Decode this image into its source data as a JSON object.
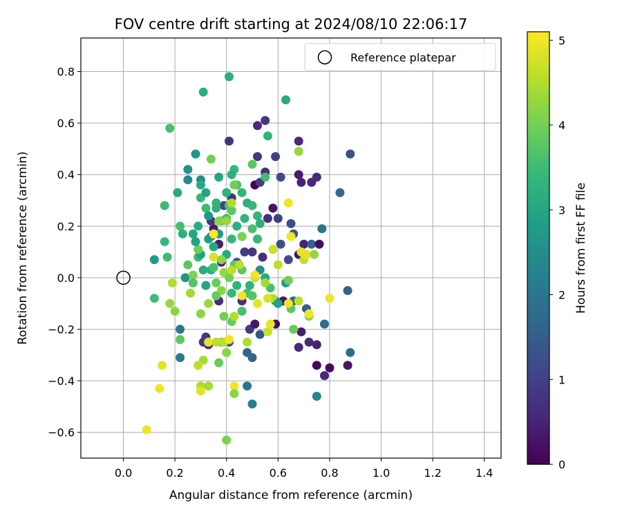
{
  "chart_data": {
    "type": "scatter",
    "title": "FOV centre drift starting at 2024/08/10 22:06:17",
    "xlabel": "Angular distance from reference (arcmin)",
    "ylabel": "Rotation from reference (arcmin)",
    "xlim": [
      -0.165,
      1.465
    ],
    "ylim": [
      -0.7,
      0.93
    ],
    "x_ticks": [
      0.0,
      0.2,
      0.4,
      0.6,
      0.8,
      1.0,
      1.2,
      1.4
    ],
    "x_tick_labels": [
      "0.0",
      "0.2",
      "0.4",
      "0.6",
      "0.8",
      "1.0",
      "1.2",
      "1.4"
    ],
    "y_ticks": [
      -0.6,
      -0.4,
      -0.2,
      0.0,
      0.2,
      0.4,
      0.6,
      0.8
    ],
    "y_tick_labels": [
      "−0.6",
      "−0.4",
      "−0.2",
      "0.0",
      "0.2",
      "0.4",
      "0.6",
      "0.8"
    ],
    "grid": true,
    "legend": {
      "position": "top-right",
      "entries": [
        {
          "label": "Reference platepar",
          "marker": "open-circle",
          "color": "#000000"
        }
      ]
    },
    "reference_point": {
      "x": 0.0,
      "y": 0.0,
      "label": "Reference platepar"
    },
    "colorbar": {
      "label": "Hours from first FF file",
      "min": 0,
      "max": 5.1,
      "ticks": [
        0,
        1,
        2,
        3,
        4,
        5
      ],
      "tick_labels": [
        "0",
        "1",
        "2",
        "3",
        "4",
        "5"
      ],
      "colormap": "viridis",
      "colormap_stops": [
        "#440154",
        "#482878",
        "#3e4989",
        "#31688e",
        "#26828e",
        "#1f9e89",
        "#35b779",
        "#6ece58",
        "#b5de2b",
        "#fde725"
      ]
    },
    "series": [
      {
        "points": [
          [
            0.51,
            0.36,
            0.05
          ],
          [
            0.52,
            0.59,
            0.6
          ],
          [
            0.55,
            0.61,
            0.85
          ],
          [
            0.41,
            0.53,
            0.75
          ],
          [
            0.59,
            0.47,
            1.0
          ],
          [
            0.52,
            0.47,
            0.8
          ],
          [
            0.53,
            0.37,
            0.9
          ],
          [
            0.55,
            0.41,
            0.7
          ],
          [
            0.61,
            0.39,
            1.2
          ],
          [
            0.68,
            0.53,
            0.6
          ],
          [
            0.68,
            0.4,
            0.4
          ],
          [
            0.73,
            0.37,
            0.55
          ],
          [
            0.75,
            0.39,
            0.6
          ],
          [
            0.69,
            0.37,
            0.5
          ],
          [
            0.84,
            0.33,
            1.7
          ],
          [
            0.88,
            0.48,
            1.3
          ],
          [
            0.58,
            0.27,
            0.3
          ],
          [
            0.56,
            0.23,
            0.7
          ],
          [
            0.6,
            0.23,
            1.0
          ],
          [
            0.65,
            0.21,
            1.2
          ],
          [
            0.66,
            0.17,
            1.4
          ],
          [
            0.7,
            0.13,
            0.5
          ],
          [
            0.73,
            0.13,
            1.6
          ],
          [
            0.77,
            0.19,
            2.0
          ],
          [
            0.76,
            0.13,
            0.2
          ],
          [
            0.68,
            0.09,
            0.3
          ],
          [
            0.64,
            0.07,
            1.2
          ],
          [
            0.61,
            0.13,
            1.3
          ],
          [
            0.54,
            0.08,
            0.7
          ],
          [
            0.5,
            0.1,
            0.8
          ],
          [
            0.47,
            0.1,
            0.9
          ],
          [
            0.44,
            0.06,
            1.4
          ],
          [
            0.38,
            0.06,
            0.6
          ],
          [
            0.42,
            0.31,
            0.8
          ],
          [
            0.39,
            0.28,
            1.1
          ],
          [
            0.35,
            0.19,
            0.4
          ],
          [
            0.34,
            0.22,
            0.8
          ],
          [
            0.37,
            0.13,
            0.4
          ],
          [
            0.37,
            -0.09,
            0.6
          ],
          [
            0.46,
            -0.09,
            0.7
          ],
          [
            0.49,
            -0.2,
            0.85
          ],
          [
            0.51,
            -0.18,
            0.3
          ],
          [
            0.53,
            -0.22,
            1.4
          ],
          [
            0.59,
            -0.18,
            0.1
          ],
          [
            0.62,
            -0.09,
            0.3
          ],
          [
            0.68,
            -0.27,
            0.6
          ],
          [
            0.69,
            -0.21,
            0.4
          ],
          [
            0.72,
            -0.25,
            0.6
          ],
          [
            0.75,
            -0.26,
            0.5
          ],
          [
            0.75,
            -0.34,
            0.1
          ],
          [
            0.78,
            -0.38,
            0.6
          ],
          [
            0.8,
            -0.35,
            0.15
          ],
          [
            0.87,
            -0.34,
            0.3
          ],
          [
            0.88,
            -0.29,
            1.8
          ],
          [
            0.87,
            -0.05,
            1.6
          ],
          [
            0.78,
            -0.18,
            1.8
          ],
          [
            0.71,
            -0.12,
            1.5
          ],
          [
            0.66,
            -0.09,
            1.7
          ],
          [
            0.59,
            -0.09,
            1.9
          ],
          [
            0.5,
            -0.31,
            1.6
          ],
          [
            0.48,
            -0.29,
            1.7
          ],
          [
            0.41,
            -0.25,
            1.3
          ],
          [
            0.32,
            -0.23,
            0.8
          ],
          [
            0.33,
            -0.26,
            0.6
          ],
          [
            0.31,
            -0.25,
            0.8
          ],
          [
            0.22,
            -0.2,
            2.0
          ],
          [
            0.22,
            -0.31,
            2.1
          ],
          [
            0.48,
            -0.42,
            2.0
          ],
          [
            0.5,
            -0.49,
            2.2
          ],
          [
            0.75,
            -0.46,
            2.3
          ],
          [
            0.63,
            0.69,
            3.1
          ],
          [
            0.31,
            0.72,
            3.2
          ],
          [
            0.41,
            0.78,
            3.2
          ],
          [
            0.18,
            0.58,
            3.6
          ],
          [
            0.28,
            0.48,
            2.7
          ],
          [
            0.25,
            0.42,
            2.6
          ],
          [
            0.25,
            0.38,
            2.4
          ],
          [
            0.3,
            0.38,
            2.5
          ],
          [
            0.3,
            0.36,
            3.1
          ],
          [
            0.37,
            0.39,
            3.0
          ],
          [
            0.43,
            0.42,
            3.4
          ],
          [
            0.42,
            0.4,
            3.2
          ],
          [
            0.4,
            0.33,
            3.3
          ],
          [
            0.41,
            0.28,
            3.7
          ],
          [
            0.44,
            0.36,
            3.6
          ],
          [
            0.46,
            0.33,
            3.3
          ],
          [
            0.48,
            0.29,
            3.2
          ],
          [
            0.5,
            0.28,
            3.4
          ],
          [
            0.52,
            0.24,
            3.3
          ],
          [
            0.55,
            0.39,
            3.5
          ],
          [
            0.56,
            0.55,
            3.3
          ],
          [
            0.5,
            0.44,
            3.8
          ],
          [
            0.16,
            0.28,
            3.5
          ],
          [
            0.21,
            0.33,
            3.1
          ],
          [
            0.22,
            0.2,
            3.6
          ],
          [
            0.23,
            0.17,
            3.2
          ],
          [
            0.27,
            0.17,
            3.0
          ],
          [
            0.29,
            0.2,
            3.1
          ],
          [
            0.3,
            0.31,
            3.4
          ],
          [
            0.32,
            0.27,
            3.5
          ],
          [
            0.36,
            0.27,
            3.2
          ],
          [
            0.36,
            0.29,
            3.3
          ],
          [
            0.38,
            0.22,
            3.7
          ],
          [
            0.4,
            0.23,
            3.5
          ],
          [
            0.42,
            0.26,
            3.8
          ],
          [
            0.44,
            0.2,
            3.2
          ],
          [
            0.46,
            0.16,
            3.5
          ],
          [
            0.47,
            0.23,
            3.3
          ],
          [
            0.5,
            0.19,
            3.6
          ],
          [
            0.52,
            0.15,
            3.4
          ],
          [
            0.53,
            0.21,
            3.2
          ],
          [
            0.16,
            0.14,
            3.4
          ],
          [
            0.17,
            0.08,
            3.5
          ],
          [
            0.12,
            0.07,
            2.8
          ],
          [
            0.12,
            -0.08,
            3.5
          ],
          [
            0.24,
            0.0,
            2.6
          ],
          [
            0.25,
            0.05,
            3.8
          ],
          [
            0.27,
            0.01,
            4.1
          ],
          [
            0.29,
            0.08,
            3.5
          ],
          [
            0.31,
            0.03,
            3.1
          ],
          [
            0.32,
            -0.03,
            3.0
          ],
          [
            0.34,
            0.03,
            3.2
          ],
          [
            0.35,
            0.04,
            3.6
          ],
          [
            0.36,
            -0.02,
            3.9
          ],
          [
            0.38,
            -0.05,
            4.2
          ],
          [
            0.39,
            0.02,
            4.3
          ],
          [
            0.41,
            0.0,
            4.0
          ],
          [
            0.42,
            -0.06,
            3.4
          ],
          [
            0.43,
            0.05,
            3.8
          ],
          [
            0.44,
            -0.03,
            3.3
          ],
          [
            0.46,
            0.03,
            3.8
          ],
          [
            0.48,
            -0.06,
            3.6
          ],
          [
            0.49,
            -0.03,
            3.3
          ],
          [
            0.5,
            -0.07,
            3.7
          ],
          [
            0.53,
            0.03,
            2.6
          ],
          [
            0.55,
            0.0,
            3.1
          ],
          [
            0.57,
            -0.04,
            3.6
          ],
          [
            0.58,
            -0.08,
            4.5
          ],
          [
            0.6,
            -0.1,
            2.9
          ],
          [
            0.63,
            -0.02,
            2.8
          ],
          [
            0.64,
            -0.01,
            4.0
          ],
          [
            0.65,
            -0.12,
            3.8
          ],
          [
            0.66,
            -0.2,
            3.9
          ],
          [
            0.72,
            -0.15,
            4.2
          ],
          [
            0.6,
            0.05,
            4.6
          ],
          [
            0.33,
            0.15,
            2.9
          ],
          [
            0.35,
            0.12,
            3.0
          ],
          [
            0.37,
            0.17,
            2.8
          ],
          [
            0.4,
            0.09,
            3.1
          ],
          [
            0.42,
            0.15,
            3.4
          ],
          [
            0.3,
            0.09,
            2.9
          ],
          [
            0.29,
            0.11,
            4.0
          ],
          [
            0.28,
            0.14,
            3.0
          ],
          [
            0.32,
            0.33,
            3.0
          ],
          [
            0.33,
            0.24,
            2.7
          ],
          [
            0.34,
            0.16,
            2.6
          ],
          [
            0.2,
            -0.13,
            4.2
          ],
          [
            0.18,
            -0.1,
            4.3
          ],
          [
            0.19,
            -0.02,
            4.5
          ],
          [
            0.22,
            -0.24,
            3.8
          ],
          [
            0.26,
            -0.06,
            4.4
          ],
          [
            0.27,
            -0.02,
            3.7
          ],
          [
            0.3,
            -0.14,
            4.2
          ],
          [
            0.33,
            -0.1,
            4.3
          ],
          [
            0.36,
            -0.07,
            3.9
          ],
          [
            0.39,
            -0.15,
            4.0
          ],
          [
            0.42,
            -0.17,
            3.9
          ],
          [
            0.43,
            -0.15,
            4.5
          ],
          [
            0.46,
            -0.13,
            3.6
          ],
          [
            0.4,
            -0.29,
            4.2
          ],
          [
            0.38,
            -0.25,
            4.0
          ],
          [
            0.37,
            -0.33,
            3.9
          ],
          [
            0.39,
            -0.25,
            4.6
          ],
          [
            0.31,
            -0.32,
            4.4
          ],
          [
            0.29,
            -0.34,
            4.6
          ],
          [
            0.3,
            -0.42,
            4.5
          ],
          [
            0.33,
            -0.42,
            4.4
          ],
          [
            0.36,
            -0.25,
            4.6
          ],
          [
            0.48,
            -0.25,
            4.5
          ],
          [
            0.4,
            -0.63,
            4.1
          ],
          [
            0.34,
            0.46,
            4.0
          ],
          [
            0.37,
            0.22,
            4.2
          ],
          [
            0.43,
            0.36,
            4.0
          ],
          [
            0.46,
            0.16,
            4.1
          ],
          [
            0.42,
            0.29,
            4.5
          ],
          [
            0.4,
            0.22,
            4.3
          ],
          [
            0.45,
            0.05,
            4.6
          ],
          [
            0.51,
            0.0,
            4.6
          ],
          [
            0.55,
            -0.02,
            4.4
          ],
          [
            0.58,
            0.11,
            4.7
          ],
          [
            0.65,
            0.16,
            5.0
          ],
          [
            0.64,
            0.29,
            5.0
          ],
          [
            0.68,
            0.49,
            4.3
          ],
          [
            0.69,
            0.1,
            4.9
          ],
          [
            0.7,
            0.07,
            4.6
          ],
          [
            0.71,
            0.09,
            4.9
          ],
          [
            0.74,
            0.09,
            4.3
          ],
          [
            0.68,
            -0.09,
            4.6
          ],
          [
            0.52,
            -0.1,
            4.9
          ],
          [
            0.56,
            -0.21,
            4.7
          ],
          [
            0.57,
            -0.18,
            4.9
          ],
          [
            0.64,
            -0.1,
            5.0
          ],
          [
            0.72,
            -0.14,
            5.0
          ],
          [
            0.8,
            -0.08,
            5.0
          ],
          [
            0.35,
            0.17,
            5.1
          ],
          [
            0.35,
            0.08,
            4.8
          ],
          [
            0.38,
            0.07,
            4.2
          ],
          [
            0.42,
            0.03,
            4.6
          ],
          [
            0.41,
            -0.24,
            5.0
          ],
          [
            0.33,
            -0.25,
            4.9
          ],
          [
            0.15,
            -0.34,
            4.9
          ],
          [
            0.14,
            -0.43,
            5.0
          ],
          [
            0.09,
            -0.59,
            5.0
          ],
          [
            0.3,
            -0.44,
            4.9
          ],
          [
            0.43,
            -0.42,
            5.0
          ],
          [
            0.46,
            -0.07,
            5.0
          ],
          [
            0.51,
            0.01,
            5.0
          ],
          [
            0.56,
            -0.08,
            4.8
          ],
          [
            0.43,
            -0.45,
            4.2
          ]
        ]
      }
    ]
  }
}
